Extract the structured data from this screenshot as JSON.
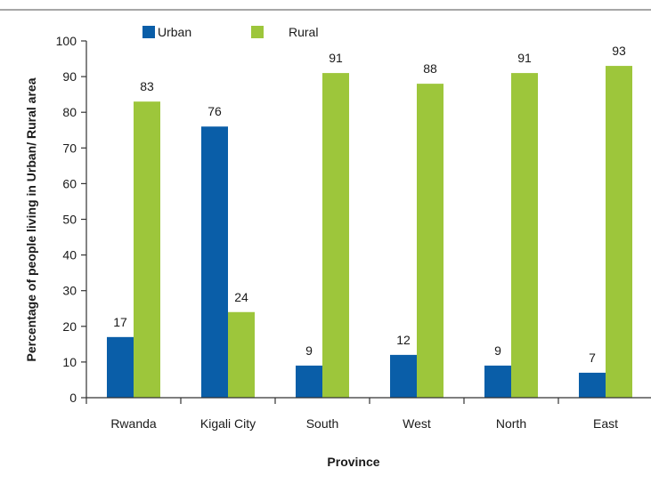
{
  "colors": {
    "urban": "#0a5ea8",
    "rural": "#9dc63b",
    "axis": "#333333",
    "top_rule": "#888888"
  },
  "chart_data": {
    "type": "bar",
    "categories": [
      "Rwanda",
      "Kigali City",
      "South",
      "West",
      "North",
      "East"
    ],
    "series": [
      {
        "name": "Urban",
        "values": [
          17,
          76,
          9,
          12,
          9,
          7
        ]
      },
      {
        "name": "Rural",
        "values": [
          83,
          24,
          91,
          88,
          91,
          93
        ]
      }
    ],
    "data_labels": {
      "Urban": [
        "17",
        "76",
        "9",
        "12",
        "9",
        "7"
      ],
      "Rural": [
        "83",
        "24",
        "91",
        "88",
        "91",
        "93"
      ]
    },
    "title": "",
    "xlabel": "Province",
    "ylabel": "Percentage of people living in Urban/ Rural area",
    "ylim": [
      0,
      100
    ],
    "yticks": [
      0,
      10,
      20,
      30,
      40,
      50,
      60,
      70,
      80,
      90,
      100
    ],
    "grid": false,
    "legend_position": "top"
  }
}
